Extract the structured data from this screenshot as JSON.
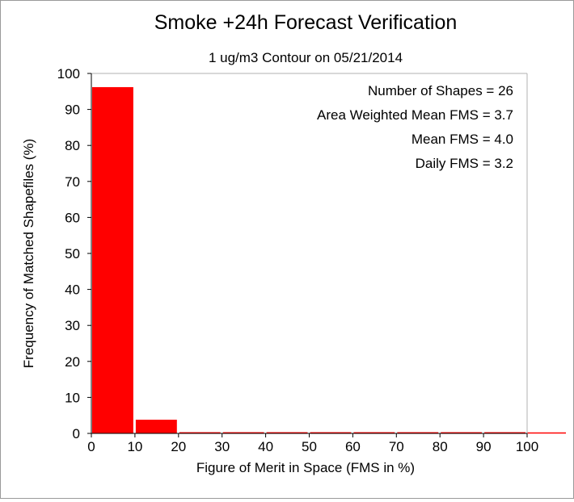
{
  "chart_data": {
    "type": "bar",
    "title": "Smoke +24h Forecast Verification",
    "subtitle": "1 ug/m3 Contour on 05/21/2014",
    "xlabel": "Figure of Merit in Space (FMS in %)",
    "ylabel": "Frequency of Matched Shapefiles (%)",
    "xlim": [
      0,
      100
    ],
    "ylim": [
      0,
      100
    ],
    "xticks": [
      "0",
      "10",
      "20",
      "30",
      "40",
      "50",
      "60",
      "70",
      "80",
      "90",
      "100"
    ],
    "yticks": [
      "0",
      "10",
      "20",
      "30",
      "40",
      "50",
      "60",
      "70",
      "80",
      "90",
      "100"
    ],
    "bins": [
      {
        "from": 0,
        "to": 10,
        "value": 96.2
      },
      {
        "from": 10,
        "to": 20,
        "value": 3.8
      },
      {
        "from": 20,
        "to": 30,
        "value": 0
      },
      {
        "from": 30,
        "to": 40,
        "value": 0
      },
      {
        "from": 40,
        "to": 50,
        "value": 0
      },
      {
        "from": 50,
        "to": 60,
        "value": 0
      },
      {
        "from": 60,
        "to": 70,
        "value": 0
      },
      {
        "from": 70,
        "to": 80,
        "value": 0
      },
      {
        "from": 80,
        "to": 90,
        "value": 0
      },
      {
        "from": 90,
        "to": 100,
        "value": 0
      }
    ],
    "bar_color": "#ff0000",
    "grid": false,
    "annotations": [
      "Number of Shapes = 26",
      "Area Weighted Mean FMS = 3.7",
      "Mean FMS = 4.0",
      "Daily FMS = 3.2"
    ]
  }
}
